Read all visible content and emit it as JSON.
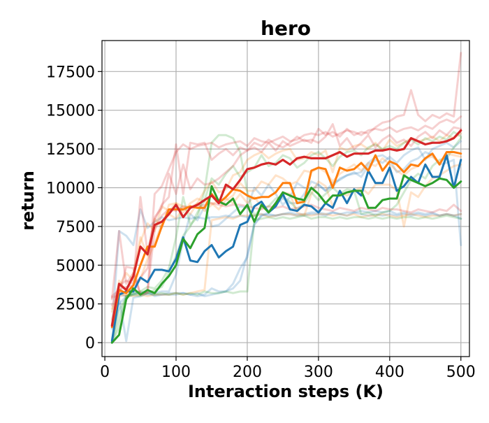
{
  "chart_data": {
    "type": "line",
    "title": "hero",
    "xlabel": "Interaction steps (K)",
    "ylabel": "return",
    "xlim": [
      -4,
      512
    ],
    "ylim": [
      -900,
      19500
    ],
    "xticks": [
      0,
      100,
      200,
      300,
      400,
      500
    ],
    "yticks": [
      0,
      2500,
      5000,
      7500,
      10000,
      12500,
      15000,
      17500
    ],
    "grid": true,
    "x": [
      10,
      20,
      30,
      40,
      50,
      60,
      70,
      80,
      90,
      100,
      110,
      120,
      130,
      140,
      150,
      160,
      170,
      180,
      190,
      200,
      210,
      220,
      230,
      240,
      250,
      260,
      270,
      280,
      290,
      300,
      310,
      320,
      330,
      340,
      350,
      360,
      370,
      380,
      390,
      400,
      410,
      420,
      430,
      440,
      450,
      460,
      470,
      480,
      490,
      500
    ],
    "series": [
      {
        "color": "#1f77b4",
        "alpha": 1.0,
        "width": 3,
        "values": [
          100,
          3100,
          3300,
          3300,
          4200,
          3900,
          4700,
          4700,
          4600,
          5400,
          6800,
          5300,
          5200,
          5900,
          6300,
          5500,
          5900,
          6200,
          7600,
          7800,
          8800,
          9100,
          8400,
          8800,
          9600,
          8600,
          8500,
          8900,
          8800,
          8400,
          9000,
          8700,
          9800,
          9000,
          9900,
          9500,
          11100,
          10300,
          10300,
          11300,
          9800,
          10100,
          10700,
          10300,
          11500,
          10700,
          10700,
          12100,
          10000,
          11800
        ]
      },
      {
        "color": "#ff7f0e",
        "alpha": 1.0,
        "width": 3,
        "values": [
          1000,
          3400,
          3200,
          3700,
          5000,
          6200,
          6200,
          7500,
          8600,
          8600,
          8600,
          8800,
          8700,
          8700,
          9600,
          9000,
          9400,
          9900,
          9800,
          9500,
          9300,
          9400,
          9400,
          9700,
          10300,
          10300,
          9000,
          9100,
          11100,
          11300,
          11200,
          10000,
          11300,
          11100,
          11200,
          11600,
          11100,
          12100,
          11100,
          11700,
          11500,
          11000,
          11500,
          11400,
          11900,
          12200,
          11500,
          12300,
          12300,
          12200
        ]
      },
      {
        "color": "#2ca02c",
        "alpha": 1.0,
        "width": 3,
        "values": [
          0,
          500,
          2800,
          3500,
          3100,
          3400,
          3200,
          3800,
          4300,
          5000,
          6700,
          6100,
          7000,
          7400,
          10100,
          9100,
          8900,
          9300,
          8300,
          8900,
          7800,
          8900,
          8400,
          9000,
          9700,
          9500,
          9300,
          9200,
          10000,
          9600,
          9000,
          9500,
          9500,
          9700,
          9800,
          9800,
          8700,
          8700,
          9200,
          9300,
          9300,
          10800,
          10500,
          10300,
          10100,
          10300,
          10600,
          10500,
          10000,
          10400
        ]
      },
      {
        "color": "#d62728",
        "alpha": 1.0,
        "width": 3.2,
        "values": [
          1100,
          3800,
          3400,
          4300,
          6200,
          5700,
          7600,
          7800,
          8300,
          8900,
          8100,
          8700,
          8900,
          9200,
          9500,
          9000,
          10200,
          9900,
          10500,
          11200,
          11300,
          11500,
          11600,
          11500,
          11800,
          11500,
          11900,
          12000,
          11900,
          11900,
          11900,
          12100,
          12300,
          12000,
          12200,
          12200,
          12200,
          12400,
          12400,
          12500,
          12400,
          12500,
          13200,
          13000,
          12800,
          12900,
          12900,
          13000,
          13200,
          13700
        ]
      },
      {
        "color": "#1f77b4",
        "alpha": 0.22,
        "width": 3,
        "values": [
          900,
          7200,
          6900,
          6300,
          8600,
          7400,
          7800,
          8100,
          7900,
          8000,
          8100,
          8000,
          8100,
          8000,
          8100,
          8100,
          8200,
          8100,
          8200,
          8100,
          8200,
          8300,
          8200,
          8200,
          8300,
          8300,
          8200,
          8200,
          8300,
          8300,
          8200,
          8400,
          8300,
          8200,
          8400,
          8300,
          8200,
          8300,
          8200,
          8300,
          8200,
          8300,
          8200,
          8300,
          8200,
          8300,
          8200,
          8300,
          8200,
          8300
        ]
      },
      {
        "color": "#1f77b4",
        "alpha": 0.22,
        "width": 3,
        "values": [
          0,
          3100,
          3000,
          3100,
          3200,
          3100,
          3100,
          3100,
          3100,
          3100,
          3200,
          3100,
          3200,
          3000,
          3100,
          3200,
          3300,
          3500,
          4000,
          5700,
          7700,
          8200,
          8300,
          8200,
          8300,
          8400,
          8300,
          8300,
          8400,
          8400,
          8300,
          8400,
          8300,
          8400,
          8400,
          8500,
          8400,
          8500,
          8400,
          8500,
          8300,
          8400,
          8300,
          8400,
          8300,
          8400,
          8200,
          8300,
          8200,
          8000
        ]
      },
      {
        "color": "#1f77b4",
        "alpha": 0.22,
        "width": 3,
        "values": [
          200,
          2500,
          3000,
          3200,
          3200,
          3300,
          3000,
          3100,
          3200,
          3200,
          3200,
          3100,
          3000,
          3100,
          3500,
          3300,
          3300,
          3800,
          4800,
          5500,
          7600,
          8200,
          8400,
          9000,
          9300,
          9000,
          9000,
          9600,
          10400,
          10200,
          9800,
          10100,
          10600,
          10800,
          10900,
          11000,
          11600,
          12000,
          12100,
          11800,
          11000,
          11200,
          11700,
          11900,
          12300,
          12100,
          11500,
          11600,
          11800,
          6300
        ]
      },
      {
        "color": "#1f77b4",
        "alpha": 0.22,
        "width": 3,
        "values": [
          0,
          2900,
          100,
          2900,
          3000,
          3200,
          3200,
          3300,
          3300,
          4400,
          6600,
          8300,
          7900,
          8800,
          7500,
          7600,
          8000,
          8400,
          8800,
          8700,
          10000,
          9500,
          10200,
          9600,
          8900,
          9400,
          10300,
          10000,
          9900,
          10200,
          9800,
          10300,
          10500,
          10800,
          11000,
          10700,
          11400,
          11800,
          11600,
          12000,
          11600,
          12100,
          12400,
          12600,
          11800,
          12500,
          12700,
          12900,
          12600,
          13000
        ]
      },
      {
        "color": "#ff7f0e",
        "alpha": 0.22,
        "width": 3,
        "values": [
          2200,
          3000,
          3100,
          3000,
          3100,
          3000,
          3100,
          3100,
          3100,
          3200,
          3100,
          3200,
          3300,
          3400,
          7900,
          8000,
          8100,
          8000,
          8200,
          8200,
          8200,
          8300,
          8100,
          8200,
          8300,
          8300,
          8200,
          8300,
          8200,
          8300,
          8300,
          8200,
          8300,
          8200,
          8300,
          8100,
          8200,
          8200,
          8300,
          8200,
          8100,
          8200,
          8300,
          8200,
          8100,
          8200,
          8200,
          8300,
          8200,
          8300
        ]
      },
      {
        "color": "#ff7f0e",
        "alpha": 0.22,
        "width": 3,
        "values": [
          2000,
          3600,
          4500,
          4000,
          6500,
          7700,
          7200,
          8800,
          8500,
          9000,
          8800,
          8700,
          9000,
          9800,
          10400,
          9700,
          9900,
          10800,
          11000,
          11800,
          12100,
          12300,
          11900,
          12200,
          12400,
          12500,
          11800,
          11900,
          12300,
          12100,
          12400,
          11000,
          12600,
          12400,
          12700,
          12800,
          12500,
          12900,
          12400,
          13100,
          12700,
          12900,
          13200,
          13000,
          13100,
          13300,
          13000,
          13400,
          13200,
          13500
        ]
      },
      {
        "color": "#ff7f0e",
        "alpha": 0.22,
        "width": 3,
        "values": [
          1000,
          4000,
          3300,
          4500,
          6800,
          5600,
          8000,
          7400,
          8900,
          9000,
          8400,
          9000,
          9300,
          9100,
          9000,
          8600,
          9200,
          9500,
          10300,
          9800,
          9800,
          10400,
          10200,
          10800,
          10600,
          10200,
          10400,
          11100,
          11000,
          11300,
          11000,
          10400,
          10900,
          11200,
          11500,
          11100,
          11600,
          11400,
          11900,
          11500,
          11100,
          10800,
          11200,
          11400,
          11900,
          12000,
          11600,
          12200,
          12100,
          12000
        ]
      },
      {
        "color": "#ff7f0e",
        "alpha": 0.22,
        "width": 3,
        "values": [
          1500,
          3300,
          3000,
          3400,
          4100,
          5400,
          6400,
          7700,
          8300,
          8000,
          8700,
          8300,
          9000,
          8500,
          8900,
          9200,
          9300,
          9000,
          9600,
          9000,
          9400,
          8800,
          8500,
          9000,
          9700,
          9600,
          8400,
          8200,
          9600,
          10400,
          10100,
          8800,
          9700,
          9500,
          9800,
          10000,
          9600,
          10200,
          10200,
          10200,
          9800,
          7500,
          9700,
          9400,
          10100,
          10600,
          10800,
          11100,
          11400,
          11500
        ]
      },
      {
        "color": "#2ca02c",
        "alpha": 0.22,
        "width": 3,
        "values": [
          100,
          2100,
          2900,
          3100,
          3000,
          3200,
          3100,
          3200,
          3100,
          3200,
          3100,
          3200,
          3100,
          3300,
          3200,
          3200,
          3300,
          3200,
          3300,
          3300,
          7900,
          8000,
          8100,
          8000,
          8100,
          8000,
          8100,
          8200,
          8000,
          8100,
          8100,
          8000,
          8100,
          8000,
          8100,
          8100,
          8000,
          8100,
          8000,
          8100,
          8000,
          8100,
          8100,
          8000,
          8100,
          8000,
          8100,
          8200,
          8100,
          8000
        ]
      },
      {
        "color": "#2ca02c",
        "alpha": 0.22,
        "width": 3,
        "values": [
          0,
          1500,
          3000,
          3200,
          3300,
          3600,
          3500,
          4000,
          4800,
          6800,
          9400,
          7600,
          8100,
          9800,
          12900,
          13400,
          13400,
          13200,
          12300,
          9700,
          8200,
          8700,
          8800,
          9300,
          9400,
          9100,
          8600,
          9000,
          9700,
          9200,
          9600,
          10000,
          9600,
          9900,
          9800,
          8300,
          8400,
          8200,
          8400,
          8500,
          8900,
          9700,
          10500,
          10900,
          10600,
          11400,
          11800,
          11900,
          12600,
          13200
        ]
      },
      {
        "color": "#2ca02c",
        "alpha": 0.22,
        "width": 3,
        "values": [
          0,
          1000,
          3000,
          3100,
          3300,
          3200,
          3400,
          3600,
          4500,
          5600,
          6900,
          7500,
          8400,
          9200,
          10600,
          10200,
          10900,
          11400,
          10700,
          11000,
          11300,
          12100,
          11400,
          11600,
          12100,
          11900,
          11300,
          11600,
          12100,
          12300,
          11900,
          11400,
          12000,
          12300,
          12400,
          12100,
          12600,
          12800,
          12500,
          12700,
          12500,
          12900,
          13100,
          12800,
          13200,
          13000,
          13300,
          13100,
          13600,
          13300
        ]
      },
      {
        "color": "#d62728",
        "alpha": 0.22,
        "width": 3,
        "values": [
          2800,
          7200,
          3800,
          4500,
          3100,
          3300,
          7300,
          8200,
          8600,
          8500,
          8800,
          8700,
          8800,
          8900,
          9000,
          8900,
          8800,
          8900,
          8900,
          8800,
          8700,
          8600,
          8800,
          8700,
          8800,
          8600,
          8700,
          8800,
          8900,
          8700,
          8600,
          8500,
          8700,
          8600,
          8500,
          8700,
          8600,
          8500,
          8700,
          8600,
          8600,
          8500,
          8400,
          8600,
          8500,
          8400,
          8600,
          8500,
          8900,
          8500
        ]
      },
      {
        "color": "#d62728",
        "alpha": 0.22,
        "width": 3,
        "values": [
          2900,
          3100,
          4900,
          4800,
          3100,
          3200,
          9600,
          10100,
          11200,
          12300,
          12800,
          12500,
          12700,
          12800,
          12900,
          12600,
          12800,
          12900,
          13000,
          12700,
          13200,
          13000,
          12900,
          13100,
          13300,
          13000,
          13100,
          13400,
          13500,
          13400,
          13600,
          13300,
          13500,
          13700,
          13600,
          13400,
          13700,
          13800,
          13700,
          13900,
          13600,
          13800,
          13900,
          13700,
          14000,
          13800,
          14200,
          14400,
          14200,
          14600
        ]
      },
      {
        "color": "#d62728",
        "alpha": 0.22,
        "width": 3,
        "values": [
          2400,
          3700,
          4000,
          3800,
          9400,
          5800,
          8100,
          8700,
          10900,
          9600,
          11500,
          9900,
          10600,
          10200,
          10300,
          10600,
          11000,
          11400,
          12100,
          12400,
          12600,
          12300,
          12900,
          12400,
          13000,
          12700,
          12900,
          13100,
          12900,
          13800,
          13400,
          13600,
          13300,
          13800,
          13400,
          13600,
          13500,
          13900,
          14200,
          14300,
          14600,
          14700,
          16300,
          14700,
          14300,
          14700,
          14500,
          14800,
          14600,
          18700
        ]
      },
      {
        "color": "#d62728",
        "alpha": 0.22,
        "width": 3,
        "values": [
          3000,
          3400,
          3600,
          3700,
          4200,
          4800,
          7900,
          8900,
          9400,
          12800,
          9600,
          12900,
          12800,
          12900,
          11800,
          12200,
          12500,
          12100,
          12600,
          12400,
          12900,
          12700,
          13100,
          12800,
          12600,
          12900,
          13300,
          13000,
          13100,
          12900,
          13300,
          14100,
          12700,
          13200,
          12500,
          12900,
          13400,
          12600,
          13100,
          13400,
          12900,
          13100,
          12700,
          13300,
          13600,
          13200,
          13700,
          13400,
          13900,
          13800
        ]
      }
    ]
  }
}
